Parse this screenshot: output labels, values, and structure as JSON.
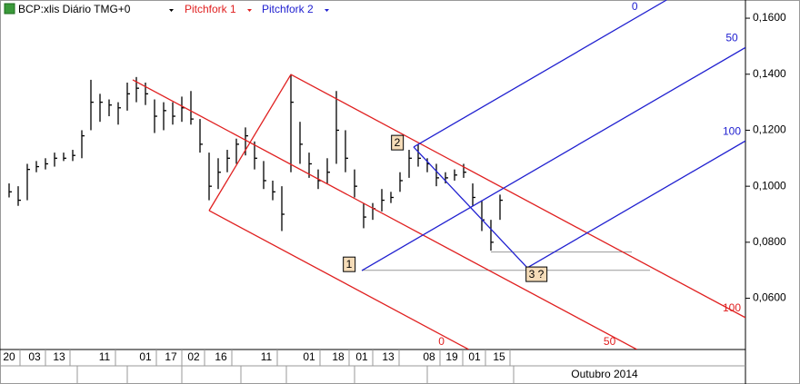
{
  "chart_data": {
    "type": "ohlc",
    "title": "BCP:xlis Diário TMG+0",
    "legend": [
      "Pitchfork 1",
      "Pitchfork 2"
    ],
    "month_label": "Outubro 2014",
    "color": "#000000",
    "x": [
      1,
      2,
      3,
      4,
      5,
      6,
      7,
      8,
      9,
      10,
      11,
      12,
      13,
      14,
      15,
      16,
      17,
      18,
      19,
      20,
      21,
      22,
      23,
      24,
      25,
      26,
      27,
      28,
      29,
      30,
      31,
      32,
      33,
      34,
      35,
      36,
      37,
      38,
      39,
      40,
      41,
      42,
      43,
      44,
      45,
      46,
      47,
      48,
      49,
      50,
      51,
      52,
      53,
      54,
      55
    ],
    "high": [
      0.101,
      0.1,
      0.108,
      0.109,
      0.11,
      0.112,
      0.112,
      0.113,
      0.12,
      0.138,
      0.133,
      0.131,
      0.13,
      0.137,
      0.139,
      0.137,
      0.131,
      0.13,
      0.13,
      0.132,
      0.134,
      0.124,
      0.112,
      0.11,
      0.113,
      0.117,
      0.121,
      0.116,
      0.109,
      0.102,
      0.1,
      0.14,
      0.123,
      0.112,
      0.106,
      0.11,
      0.134,
      0.12,
      0.106,
      0.094,
      0.094,
      0.099,
      0.098,
      0.105,
      0.113,
      0.115,
      0.11,
      0.108,
      0.105,
      0.106,
      0.108,
      0.101,
      0.095,
      0.088,
      0.097
    ],
    "low": [
      0.096,
      0.093,
      0.095,
      0.105,
      0.106,
      0.107,
      0.109,
      0.109,
      0.11,
      0.12,
      0.123,
      0.125,
      0.122,
      0.127,
      0.13,
      0.129,
      0.119,
      0.12,
      0.122,
      0.123,
      0.122,
      0.112,
      0.095,
      0.099,
      0.105,
      0.108,
      0.111,
      0.106,
      0.099,
      0.095,
      0.084,
      0.105,
      0.108,
      0.103,
      0.099,
      0.101,
      0.108,
      0.105,
      0.096,
      0.085,
      0.088,
      0.091,
      0.094,
      0.098,
      0.103,
      0.107,
      0.105,
      0.1,
      0.101,
      0.102,
      0.103,
      0.093,
      0.084,
      0.077,
      0.088
    ],
    "close": [
      0.098,
      0.095,
      0.106,
      0.107,
      0.108,
      0.11,
      0.11,
      0.111,
      0.118,
      0.13,
      0.13,
      0.129,
      0.128,
      0.133,
      0.135,
      0.133,
      0.125,
      0.127,
      0.125,
      0.128,
      0.124,
      0.115,
      0.1,
      0.105,
      0.11,
      0.115,
      0.118,
      0.11,
      0.102,
      0.098,
      0.09,
      0.13,
      0.115,
      0.108,
      0.102,
      0.105,
      0.12,
      0.11,
      0.1,
      0.089,
      0.092,
      0.095,
      0.096,
      0.102,
      0.11,
      0.11,
      0.108,
      0.103,
      0.103,
      0.104,
      0.105,
      0.096,
      0.088,
      0.08,
      0.095
    ],
    "xlim": [
      0,
      82
    ],
    "ylim": [
      0.0417,
      0.1665
    ],
    "yticks": [
      {
        "value": 0.06,
        "label": "0,0600"
      },
      {
        "value": 0.08,
        "label": "0,0800"
      },
      {
        "value": 0.1,
        "label": "0,1000"
      },
      {
        "value": 0.12,
        "label": "0,1200"
      },
      {
        "value": 0.14,
        "label": "0,1400"
      },
      {
        "value": 0.16,
        "label": "0,1600"
      }
    ],
    "xticks": [
      {
        "value": 1,
        "label": "20"
      },
      {
        "value": 3.8,
        "label": "03"
      },
      {
        "value": 6.5,
        "label": "13"
      },
      {
        "value": 11.5,
        "label": "11"
      },
      {
        "value": 16,
        "label": "01"
      },
      {
        "value": 18.8,
        "label": "17"
      },
      {
        "value": 21.3,
        "label": "02"
      },
      {
        "value": 24.3,
        "label": "16"
      },
      {
        "value": 29.3,
        "label": "11"
      },
      {
        "value": 34,
        "label": "01"
      },
      {
        "value": 37.2,
        "label": "18"
      },
      {
        "value": 39.8,
        "label": "01"
      },
      {
        "value": 42.7,
        "label": "13"
      },
      {
        "value": 47.2,
        "label": "08"
      },
      {
        "value": 49.7,
        "label": "19"
      },
      {
        "value": 52.2,
        "label": "01"
      },
      {
        "value": 54.9,
        "label": "15"
      }
    ],
    "pitchforks": [
      {
        "name": "Pitchfork 1",
        "color": "#e02020",
        "points": [
          [
            14.6,
            0.138
          ],
          [
            23,
            0.0913
          ],
          [
            32,
            0.1399
          ]
        ],
        "levels": [
          "0",
          "50",
          "100"
        ]
      },
      {
        "name": "Pitchfork 2",
        "color": "#2020d0",
        "points": [
          [
            39.8,
            0.0699
          ],
          [
            45.5,
            0.114
          ],
          [
            58,
            0.0709
          ]
        ],
        "levels": [
          "0",
          "50",
          "100"
        ],
        "pivot_labels": [
          "1",
          "2",
          "3 ?"
        ]
      }
    ],
    "hlines": [
      {
        "value": 0.0765,
        "from": 54,
        "to": 69.5
      },
      {
        "value": 0.07,
        "from": 39.8,
        "to": 71.5
      }
    ],
    "hline_color": "#999999"
  }
}
